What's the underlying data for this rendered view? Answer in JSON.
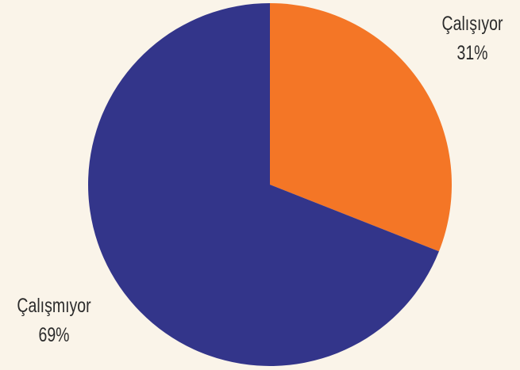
{
  "chart_data": {
    "type": "pie",
    "slices": [
      {
        "label": "Çalışıyor",
        "value": 31,
        "value_label": "31%",
        "color": "#f47626"
      },
      {
        "label": "Çalışmıyor",
        "value": 69,
        "value_label": "69%",
        "color": "#33358a"
      }
    ],
    "start": "12 o'clock",
    "direction": "clockwise",
    "background": "#faf4e9"
  }
}
